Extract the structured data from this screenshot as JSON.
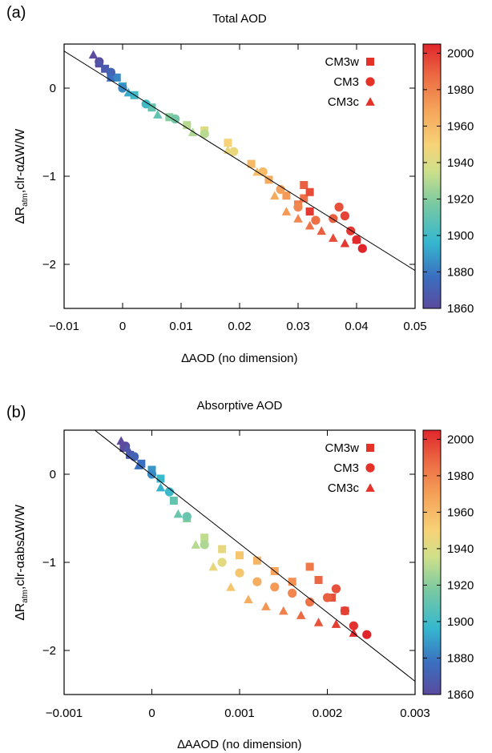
{
  "colors": {
    "colorbar_stops": [
      "#5b4a9e",
      "#3a8bcb",
      "#35b7cf",
      "#7ccaa0",
      "#cfe08a",
      "#f7d277",
      "#f5a45a",
      "#ec6a43",
      "#e0262b"
    ]
  },
  "chart_data": [
    {
      "type": "scatter",
      "panel_label": "(a)",
      "title": "Total AOD",
      "xlabel": "∆AOD (no dimension)",
      "ylabel": "∆R",
      "ylabel_sub": "atm",
      "ylabel_rest": ",clr-α∆W/W",
      "xlim": [
        -0.01,
        0.05
      ],
      "ylim": [
        -2.5,
        0.5
      ],
      "xticks": [
        -0.01,
        0,
        0.01,
        0.02,
        0.03,
        0.04,
        0.05
      ],
      "xtick_labels": [
        "−0.01",
        "0",
        "0.01",
        "0.02",
        "0.03",
        "0.04",
        "0.05"
      ],
      "yticks": [
        0,
        -1,
        -2
      ],
      "ytick_labels": [
        "0",
        "−1",
        "−2"
      ],
      "legend": [
        "CM3w",
        "CM3",
        "CM3c"
      ],
      "legend_markers": [
        "square",
        "circle",
        "triangle"
      ],
      "legend_position": "top-right",
      "colorbar": {
        "range": [
          1860,
          2005
        ],
        "ticks": [
          2000,
          1980,
          1960,
          1940,
          1920,
          1900,
          1880,
          1860
        ]
      },
      "fit_line": {
        "x": [
          -0.01,
          0.05
        ],
        "y": [
          0.42,
          -2.07
        ]
      },
      "series": [
        {
          "name": "CM3w",
          "marker": "square",
          "x": [
            -0.004,
            -0.003,
            -0.002,
            -0.001,
            0.0,
            0.002,
            0.005,
            0.008,
            0.011,
            0.014,
            0.018,
            0.022,
            0.025,
            0.028,
            0.03,
            0.031,
            0.031,
            0.032,
            0.032
          ],
          "y": [
            0.28,
            0.22,
            0.15,
            0.12,
            0.02,
            -0.08,
            -0.22,
            -0.33,
            -0.42,
            -0.48,
            -0.62,
            -0.86,
            -1.04,
            -1.22,
            -1.32,
            -1.25,
            -1.1,
            -1.18,
            -1.4
          ],
          "years": [
            1860,
            1868,
            1876,
            1884,
            1892,
            1900,
            1910,
            1920,
            1930,
            1940,
            1950,
            1960,
            1966,
            1972,
            1980,
            1985,
            1990,
            1995,
            2000
          ]
        },
        {
          "name": "CM3",
          "marker": "circle",
          "x": [
            -0.004,
            -0.002,
            0.0,
            0.004,
            0.009,
            0.014,
            0.019,
            0.024,
            0.027,
            0.03,
            0.033,
            0.036,
            0.037,
            0.038,
            0.039,
            0.04,
            0.041
          ],
          "y": [
            0.3,
            0.18,
            0.0,
            -0.18,
            -0.35,
            -0.52,
            -0.72,
            -0.95,
            -1.15,
            -1.35,
            -1.5,
            -1.48,
            -1.35,
            -1.45,
            -1.62,
            -1.72,
            -1.82
          ],
          "years": [
            1860,
            1872,
            1885,
            1900,
            1915,
            1930,
            1945,
            1960,
            1970,
            1978,
            1985,
            1990,
            1994,
            1997,
            2000,
            2003,
            2005
          ]
        },
        {
          "name": "CM3c",
          "marker": "triangle",
          "x": [
            -0.005,
            -0.004,
            -0.002,
            0.001,
            0.006,
            0.012,
            0.018,
            0.023,
            0.026,
            0.028,
            0.03,
            0.032,
            0.034,
            0.036,
            0.038,
            0.04
          ],
          "y": [
            0.38,
            0.3,
            0.12,
            -0.05,
            -0.3,
            -0.5,
            -0.7,
            -0.95,
            -1.22,
            -1.4,
            -1.48,
            -1.56,
            -1.62,
            -1.7,
            -1.76,
            -1.72
          ],
          "years": [
            1860,
            1866,
            1878,
            1893,
            1910,
            1928,
            1945,
            1958,
            1966,
            1972,
            1978,
            1984,
            1990,
            1995,
            2000,
            2004
          ]
        }
      ]
    },
    {
      "type": "scatter",
      "panel_label": "(b)",
      "title": "Absorptive AOD",
      "xlabel": "∆AAOD (no dimension)",
      "ylabel": "∆R",
      "ylabel_sub": "atm",
      "ylabel_rest": ",clr-αabs∆W/W",
      "xlim": [
        -0.001,
        0.003
      ],
      "ylim": [
        -2.5,
        0.5
      ],
      "xticks": [
        -0.001,
        0,
        0.001,
        0.002,
        0.003
      ],
      "xtick_labels": [
        "−0.001",
        "0",
        "0.001",
        "0.002",
        "0.003"
      ],
      "yticks": [
        0,
        -1,
        -2
      ],
      "ytick_labels": [
        "0",
        "−1",
        "−2"
      ],
      "legend": [
        "CM3w",
        "CM3",
        "CM3c"
      ],
      "legend_markers": [
        "square",
        "circle",
        "triangle"
      ],
      "legend_position": "top-right",
      "colorbar": {
        "range": [
          1860,
          2005
        ],
        "ticks": [
          2000,
          1980,
          1960,
          1940,
          1920,
          1900,
          1880,
          1860
        ]
      },
      "fit_line": {
        "x": [
          -0.00065,
          0.003
        ],
        "y": [
          0.5,
          -2.35
        ]
      },
      "series": [
        {
          "name": "CM3w",
          "marker": "square",
          "x": [
            -0.00032,
            -0.00025,
            -0.00012,
            0.0,
            0.0001,
            0.00025,
            0.0004,
            0.0006,
            0.0008,
            0.001,
            0.0012,
            0.0014,
            0.0016,
            0.0018,
            0.0019,
            0.00205,
            0.0022
          ],
          "y": [
            0.3,
            0.22,
            0.12,
            0.05,
            -0.05,
            -0.3,
            -0.5,
            -0.72,
            -0.85,
            -0.92,
            -0.98,
            -1.1,
            -1.22,
            -1.05,
            -1.2,
            -1.4,
            -1.55
          ],
          "years": [
            1860,
            1868,
            1878,
            1888,
            1898,
            1910,
            1920,
            1932,
            1944,
            1955,
            1962,
            1968,
            1975,
            1982,
            1988,
            1994,
            2000
          ]
        },
        {
          "name": "CM3",
          "marker": "circle",
          "x": [
            -0.0003,
            -0.0002,
            0.0,
            0.0002,
            0.0004,
            0.0006,
            0.0008,
            0.001,
            0.0012,
            0.0014,
            0.0016,
            0.0018,
            0.002,
            0.0021,
            0.0022,
            0.0023,
            0.00245
          ],
          "y": [
            0.32,
            0.2,
            0.0,
            -0.2,
            -0.48,
            -0.8,
            -1.0,
            -1.12,
            -1.22,
            -1.28,
            -1.35,
            -1.45,
            -1.4,
            -1.3,
            -1.55,
            -1.72,
            -1.82
          ],
          "years": [
            1860,
            1872,
            1885,
            1898,
            1912,
            1928,
            1942,
            1955,
            1965,
            1972,
            1978,
            1984,
            1990,
            1994,
            1998,
            2002,
            2005
          ]
        },
        {
          "name": "CM3c",
          "marker": "triangle",
          "x": [
            -0.00035,
            -0.00028,
            -0.00015,
            0.0001,
            0.0003,
            0.0005,
            0.0007,
            0.0009,
            0.0011,
            0.0013,
            0.0015,
            0.0017,
            0.0019,
            0.0021,
            0.0023
          ],
          "y": [
            0.38,
            0.3,
            0.1,
            -0.15,
            -0.45,
            -0.8,
            -1.05,
            -1.28,
            -1.42,
            -1.5,
            -1.55,
            -1.6,
            -1.68,
            -1.7,
            -1.8
          ],
          "years": [
            1860,
            1866,
            1878,
            1895,
            1912,
            1930,
            1945,
            1955,
            1965,
            1973,
            1980,
            1987,
            1993,
            1999,
            2004
          ]
        }
      ]
    }
  ]
}
